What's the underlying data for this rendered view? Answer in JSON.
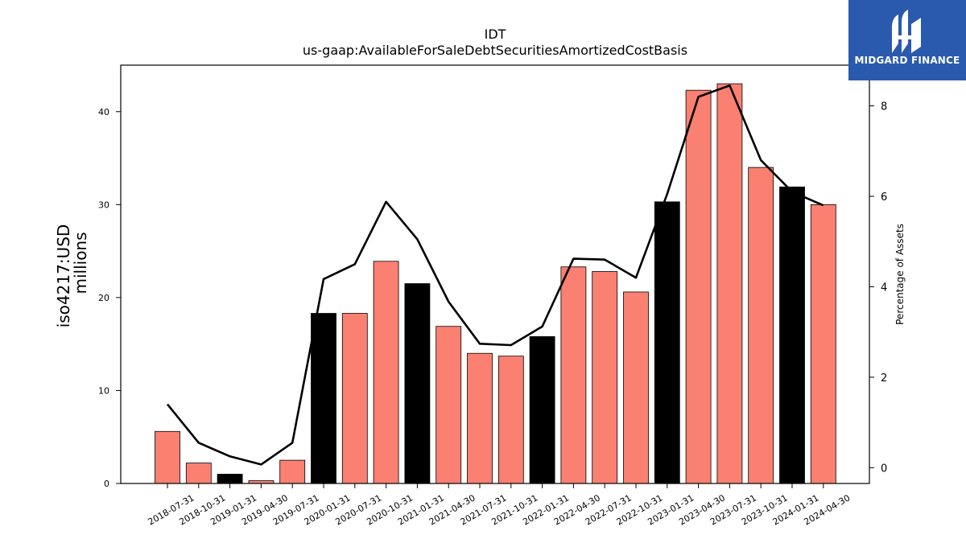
{
  "brand": {
    "name": "MIDGARD FINANCE",
    "logo_icon": "stylized-m-logo-icon",
    "bg_color": "#2a5aad"
  },
  "chart_data": {
    "type": "bar",
    "title": "IDT",
    "subtitle": "us-gaap:AvailableForSaleDebtSecuritiesAmortizedCostBasis",
    "ylabel_lines": [
      "iso4217:USD",
      "millions"
    ],
    "y2label": "Percentage of Assets",
    "ylim": [
      0,
      45
    ],
    "y2lim": [
      -0.35,
      8.9
    ],
    "yticks": [
      0,
      10,
      20,
      30,
      40
    ],
    "y2ticks": [
      0,
      2,
      4,
      6,
      8
    ],
    "categories": [
      "2018-07-31",
      "2018-10-31",
      "2019-01-31",
      "2019-04-30",
      "2019-07-31",
      "2020-01-31",
      "2020-07-31",
      "2020-10-31",
      "2021-01-31",
      "2021-04-30",
      "2021-07-31",
      "2021-10-31",
      "2022-01-31",
      "2022-04-30",
      "2022-07-31",
      "2022-10-31",
      "2023-01-31",
      "2023-04-30",
      "2023-07-31",
      "2023-10-31",
      "2024-01-31",
      "2024-04-30"
    ],
    "values": [
      5.6,
      2.2,
      1.0,
      0.3,
      2.5,
      18.3,
      18.3,
      23.9,
      21.5,
      16.9,
      14.0,
      13.7,
      15.8,
      23.3,
      22.8,
      20.6,
      30.3,
      42.3,
      43.0,
      34.0,
      31.9,
      30.0
    ],
    "highlight": [
      false,
      false,
      true,
      false,
      false,
      true,
      false,
      false,
      true,
      false,
      false,
      false,
      true,
      false,
      false,
      false,
      true,
      false,
      false,
      false,
      true,
      false
    ],
    "percent_of_assets": [
      1.4,
      0.55,
      0.25,
      0.07,
      0.55,
      4.17,
      4.5,
      5.88,
      5.05,
      3.67,
      2.74,
      2.71,
      3.12,
      4.62,
      4.6,
      4.2,
      6.05,
      8.2,
      8.45,
      6.8,
      6.1,
      5.8
    ],
    "colors": {
      "bar": "#fa8072",
      "highlight_bar": "#000000",
      "line": "#000000"
    },
    "grid": false,
    "legend": "none"
  }
}
